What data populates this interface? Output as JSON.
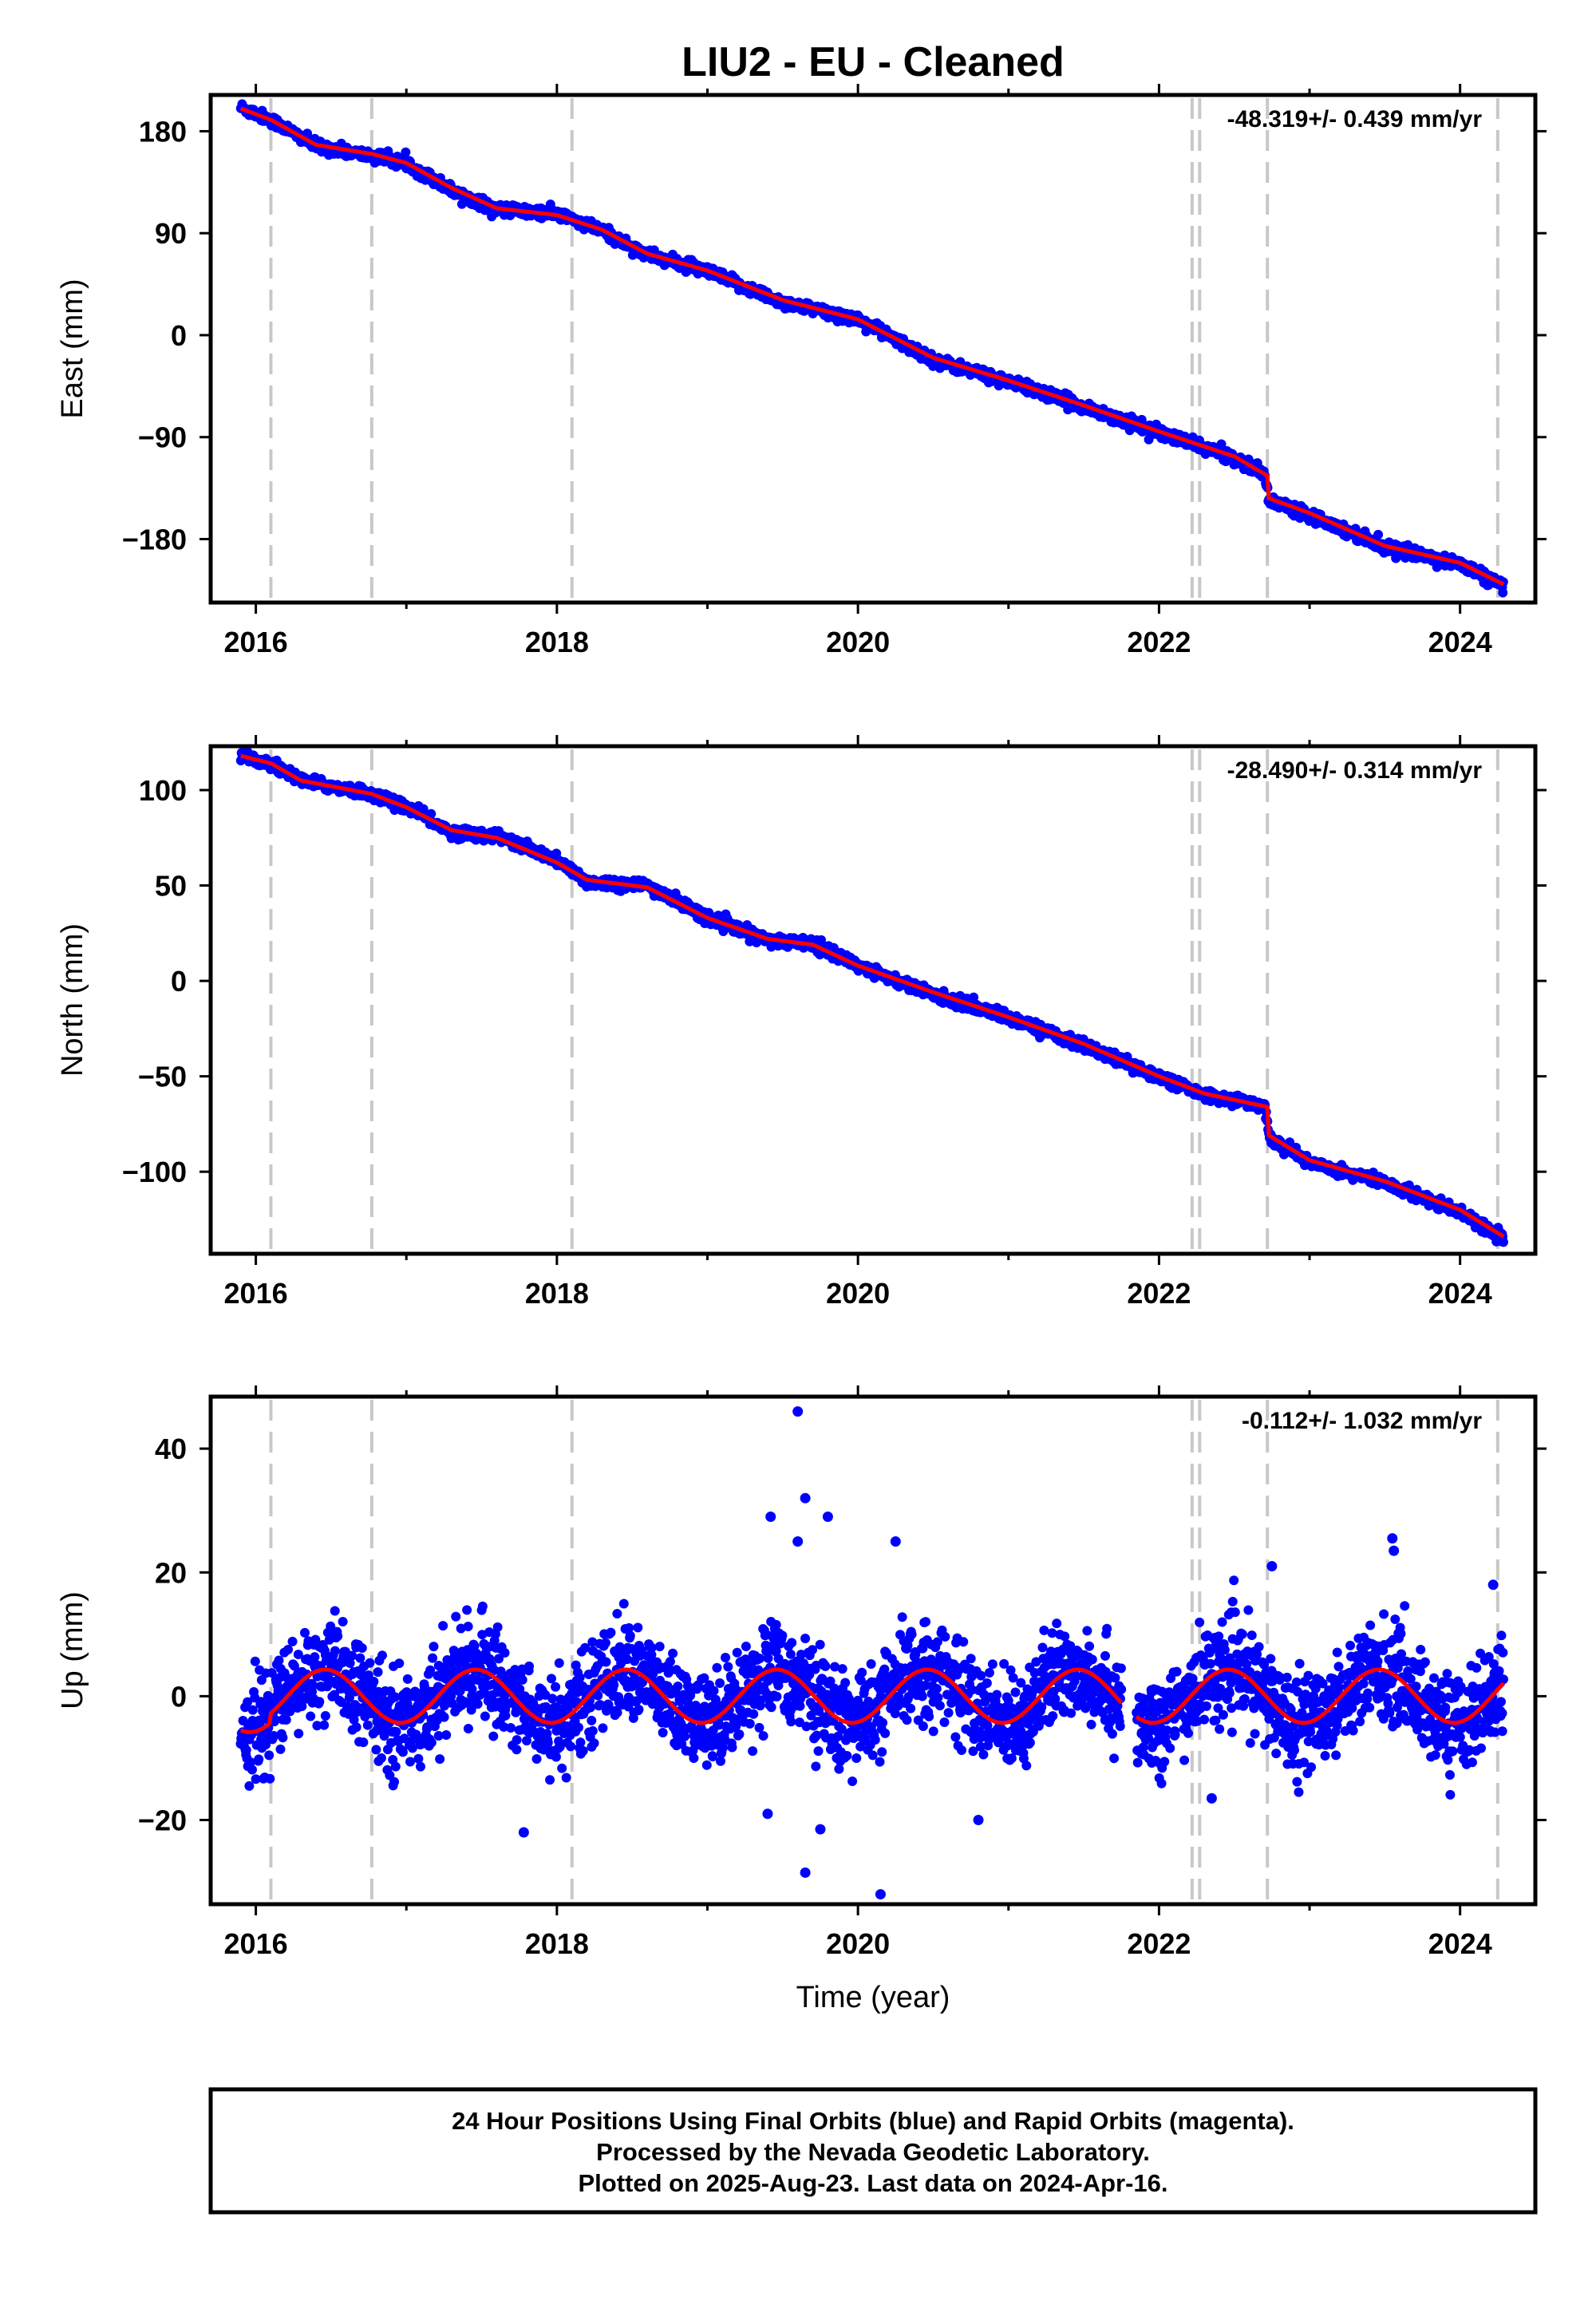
{
  "title": "LIU2  - EU - Cleaned",
  "xlabel": "Time (year)",
  "colors": {
    "final_orbits": "#0000ff",
    "model": "#ff0000",
    "event_lines": "#c8c8c8",
    "frame": "#000000"
  },
  "footer": {
    "line1": "24 Hour Positions Using Final Orbits (blue) and Rapid Orbits (magenta).",
    "line2": "Processed by the Nevada Geodetic Laboratory.",
    "line3": "Plotted on 2025-Aug-23. Last data on 2024-Apr-16."
  },
  "chart_data": [
    {
      "type": "scatter",
      "component": "East",
      "ylabel": "East (mm)",
      "rate_label": "-48.319+/- 0.439 mm/yr",
      "xlim": [
        2015.7,
        2024.5
      ],
      "ylim": [
        -236,
        212
      ],
      "yticks": [
        -180,
        -90,
        0,
        90,
        180
      ],
      "xticks": [
        2016,
        2018,
        2020,
        2022,
        2024
      ],
      "event_lines": [
        2016.1,
        2016.77,
        2018.1,
        2022.22,
        2022.27,
        2022.72,
        2024.25
      ],
      "data_range": [
        2015.9,
        2024.29
      ],
      "series": [
        {
          "name": "Final Orbits",
          "style": "points",
          "color": "#0000ff",
          "x": [
            2015.9,
            2016.1,
            2016.4,
            2016.77,
            2017.0,
            2017.3,
            2017.6,
            2018.0,
            2018.3,
            2018.6,
            2019.0,
            2019.5,
            2020.0,
            2020.5,
            2021.0,
            2021.5,
            2022.0,
            2022.5,
            2022.7,
            2022.73,
            2023.0,
            2023.5,
            2024.0,
            2024.29
          ],
          "y": [
            201,
            190,
            167,
            158,
            152,
            128,
            111,
            107,
            92,
            71,
            56,
            29,
            14,
            -22,
            -41,
            -63,
            -86,
            -108,
            -123,
            -146,
            -158,
            -187,
            -202,
            -222
          ]
        },
        {
          "name": "Model",
          "style": "line",
          "color": "#ff0000",
          "x": [
            2015.9,
            2016.1,
            2016.4,
            2016.77,
            2017.0,
            2017.3,
            2017.6,
            2018.0,
            2018.3,
            2018.6,
            2019.0,
            2019.5,
            2020.0,
            2020.5,
            2021.0,
            2021.5,
            2022.0,
            2022.5,
            2022.72,
            2022.73,
            2023.0,
            2023.5,
            2024.0,
            2024.29
          ],
          "y": [
            200,
            190,
            168,
            160,
            152,
            130,
            112,
            106,
            93,
            72,
            57,
            31,
            14,
            -20,
            -40,
            -62,
            -85,
            -107,
            -124,
            -144,
            -157,
            -186,
            -201,
            -220
          ]
        }
      ]
    },
    {
      "type": "scatter",
      "component": "North",
      "ylabel": "North (mm)",
      "rate_label": "-28.490+/- 0.314 mm/yr",
      "xlim": [
        2015.7,
        2024.5
      ],
      "ylim": [
        -143,
        123
      ],
      "yticks": [
        -100,
        -50,
        0,
        50,
        100
      ],
      "xticks": [
        2016,
        2018,
        2020,
        2022,
        2024
      ],
      "event_lines": [
        2016.1,
        2016.77,
        2018.1,
        2022.22,
        2022.27,
        2022.72,
        2024.25
      ],
      "data_range": [
        2015.9,
        2024.29
      ],
      "series": [
        {
          "name": "Final Orbits",
          "style": "points",
          "color": "#0000ff",
          "x": [
            2015.9,
            2016.1,
            2016.3,
            2016.77,
            2017.0,
            2017.3,
            2017.6,
            2018.0,
            2018.2,
            2018.6,
            2019.0,
            2019.4,
            2019.7,
            2020.0,
            2020.5,
            2021.0,
            2021.5,
            2022.0,
            2022.3,
            2022.7,
            2022.73,
            2023.0,
            2023.5,
            2024.0,
            2024.29
          ],
          "y": [
            118,
            114,
            105,
            98,
            91,
            78,
            76,
            63,
            52,
            50,
            33,
            21,
            20,
            8,
            -7,
            -19,
            -34,
            -50,
            -60,
            -65,
            -82,
            -95,
            -106,
            -121,
            -135
          ]
        },
        {
          "name": "Model",
          "style": "line",
          "color": "#ff0000",
          "x": [
            2015.9,
            2016.1,
            2016.3,
            2016.77,
            2017.0,
            2017.3,
            2017.6,
            2018.0,
            2018.2,
            2018.6,
            2019.0,
            2019.4,
            2019.7,
            2020.0,
            2020.5,
            2021.0,
            2021.5,
            2022.0,
            2022.3,
            2022.72,
            2022.73,
            2023.0,
            2023.5,
            2024.0,
            2024.29
          ],
          "y": [
            118,
            114,
            105,
            98,
            91,
            79,
            75,
            62,
            53,
            49,
            33,
            22,
            19,
            8,
            -6,
            -19,
            -33,
            -50,
            -59,
            -66,
            -81,
            -94,
            -105,
            -120,
            -134
          ]
        }
      ]
    },
    {
      "type": "scatter",
      "component": "Up",
      "ylabel": "Up (mm)",
      "rate_label": "-0.112+/- 1.032 mm/yr",
      "xlim": [
        2015.7,
        2024.5
      ],
      "ylim": [
        -33.6,
        48.4
      ],
      "yticks": [
        -20,
        0,
        20,
        40
      ],
      "xticks": [
        2016,
        2018,
        2020,
        2022,
        2024
      ],
      "event_lines": [
        2016.1,
        2016.77,
        2018.1,
        2022.22,
        2022.27,
        2022.72,
        2024.25
      ],
      "data_range": [
        2015.9,
        2024.29
      ],
      "seasonal": {
        "amplitude": 4.3,
        "phase_peak": 0.46,
        "jump_at": 2016.1,
        "gap": [
          2021.75,
          2021.85
        ]
      },
      "outliers": [
        {
          "x": 2019.6,
          "y": 46.0
        },
        {
          "x": 2019.65,
          "y": 32.0
        },
        {
          "x": 2019.42,
          "y": 29.0
        },
        {
          "x": 2019.8,
          "y": 29.0
        },
        {
          "x": 2019.6,
          "y": 25.0
        },
        {
          "x": 2020.25,
          "y": 25.0
        },
        {
          "x": 2023.55,
          "y": 25.5
        },
        {
          "x": 2023.56,
          "y": 23.5
        },
        {
          "x": 2022.75,
          "y": 21.0
        },
        {
          "x": 2024.22,
          "y": 18.0
        },
        {
          "x": 2017.78,
          "y": -22.0
        },
        {
          "x": 2019.4,
          "y": -19.0
        },
        {
          "x": 2019.75,
          "y": -21.5
        },
        {
          "x": 2019.65,
          "y": -28.5
        },
        {
          "x": 2020.15,
          "y": -32.0
        },
        {
          "x": 2020.8,
          "y": -20.0
        },
        {
          "x": 2022.35,
          "y": -16.5
        }
      ],
      "series": [
        {
          "name": "Final Orbits",
          "style": "points",
          "color": "#0000ff",
          "n_points": 2900
        },
        {
          "name": "Model",
          "style": "line",
          "color": "#ff0000"
        }
      ]
    }
  ]
}
